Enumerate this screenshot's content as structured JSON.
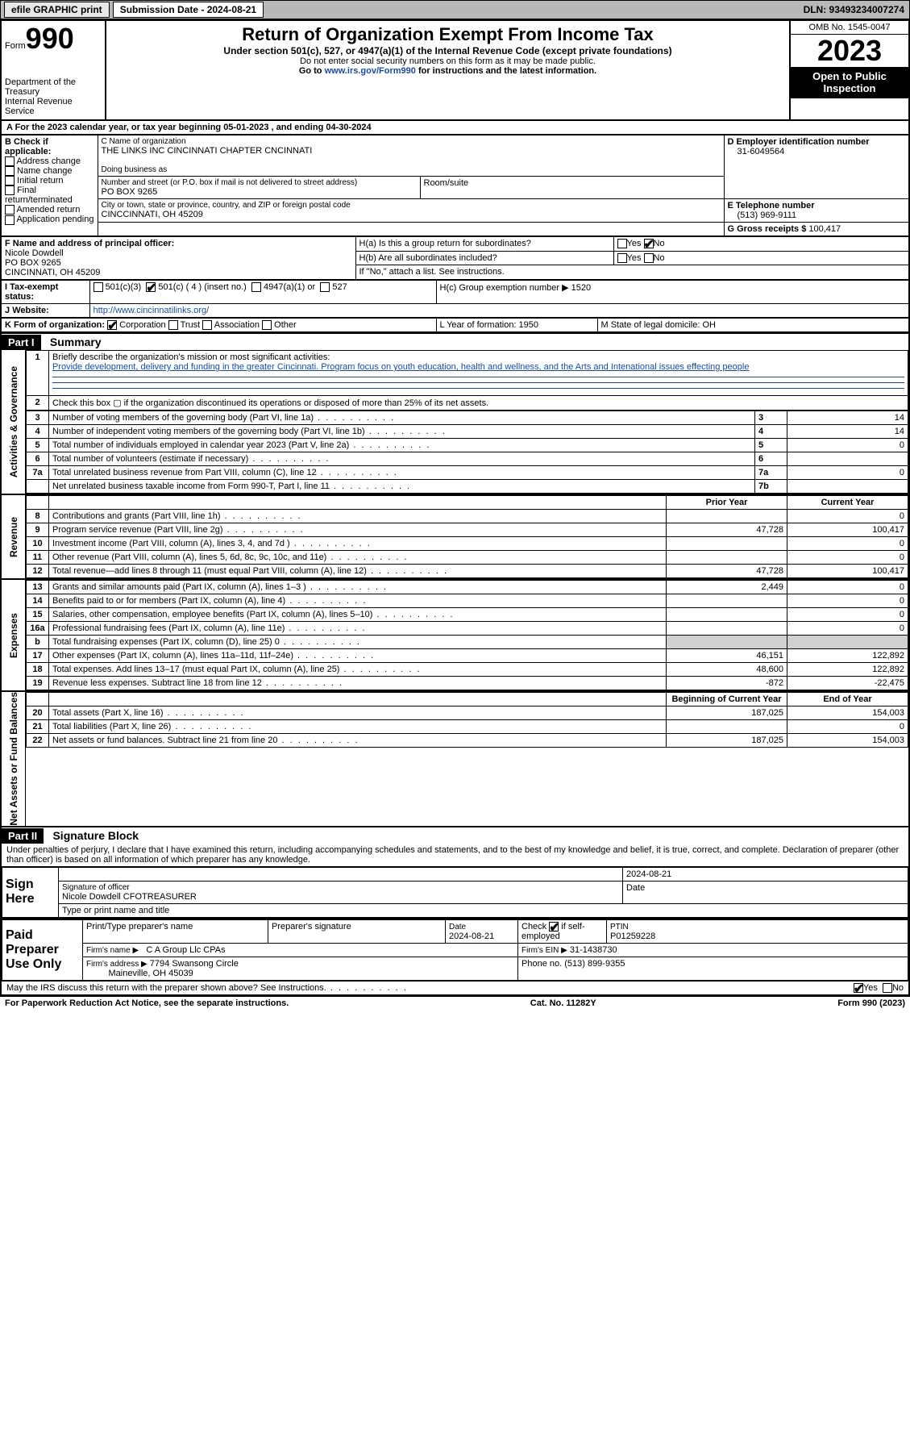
{
  "topbar": {
    "efile_btn": "efile GRAPHIC print",
    "sub_label": "Submission Date - 2024-08-21",
    "dln": "DLN: 93493234007274"
  },
  "header": {
    "form_word": "Form",
    "form_no": "990",
    "dept": "Department of the Treasury",
    "irs": "Internal Revenue Service",
    "title": "Return of Organization Exempt From Income Tax",
    "sub1": "Under section 501(c), 527, or 4947(a)(1) of the Internal Revenue Code (except private foundations)",
    "sub2": "Do not enter social security numbers on this form as it may be made public.",
    "sub3": "Go to www.irs.gov/Form990 for instructions and the latest information.",
    "omb": "OMB No. 1545-0047",
    "year": "2023",
    "open": "Open to Public Inspection"
  },
  "lineA": "A For the 2023 calendar year, or tax year beginning 05-01-2023    , and ending 04-30-2024",
  "boxB": {
    "title": "B Check if applicable:",
    "items": [
      "Address change",
      "Name change",
      "Initial return",
      "Final return/terminated",
      "Amended return",
      "Application pending"
    ]
  },
  "boxC": {
    "label": "C Name of organization",
    "name": "THE LINKS INC CINCINNATI CHAPTER CNCINNATI",
    "dba": "Doing business as",
    "addr_label": "Number and street (or P.O. box if mail is not delivered to street address)",
    "addr": "PO BOX 9265",
    "room": "Room/suite",
    "city_label": "City or town, state or province, country, and ZIP or foreign postal code",
    "city": "CINCCINNATI, OH  45209"
  },
  "boxD": {
    "label": "D Employer identification number",
    "val": "31-6049564"
  },
  "boxE": {
    "label": "E Telephone number",
    "val": "(513) 969-9111"
  },
  "boxG": {
    "label": "G Gross receipts $",
    "val": "100,417"
  },
  "boxF": {
    "label": "F  Name and address of principal officer:",
    "name": "Nicole Dowdell",
    "addr1": "PO BOX 9265",
    "addr2": "CINCINNATI, OH  45209"
  },
  "boxH": {
    "a": "H(a)  Is this a group return for subordinates?",
    "b": "H(b)  Are all subordinates included?",
    "bnote": "If \"No,\" attach a list. See instructions.",
    "c": "H(c)  Group exemption number ▶   1520",
    "yes": "Yes",
    "no": "No"
  },
  "boxI": {
    "label": "Tax-exempt status:",
    "c3": "501(c)(3)",
    "c": "501(c) ( 4 ) (insert no.)",
    "a1": "4947(a)(1) or",
    "527": "527"
  },
  "boxJ": {
    "label": "Website: ",
    "val": "http://www.cincinnatilinks.org/"
  },
  "boxK": {
    "label": "K Form of organization:",
    "corp": "Corporation",
    "trust": "Trust",
    "assoc": "Association",
    "other": "Other"
  },
  "boxL": {
    "label": "L Year of formation: 1950"
  },
  "boxM": {
    "label": "M State of legal domicile: OH"
  },
  "part1": {
    "bar": "Part I",
    "title": "Summary"
  },
  "summary": {
    "q1": "Briefly describe the organization's mission or most significant activities:",
    "mission": "Provide development, delivery and funding in the greater Cincinnati. Program focus on youth education, health and wellness, and the Arts and Intenational issues effecting people",
    "q2": "Check this box ▢ if the organization discontinued its operations or disposed of more than 25% of its net assets.",
    "lines": [
      {
        "n": "3",
        "t": "Number of voting members of the governing body (Part VI, line 1a)",
        "box": "3",
        "v": "14"
      },
      {
        "n": "4",
        "t": "Number of independent voting members of the governing body (Part VI, line 1b)",
        "box": "4",
        "v": "14"
      },
      {
        "n": "5",
        "t": "Total number of individuals employed in calendar year 2023 (Part V, line 2a)",
        "box": "5",
        "v": "0"
      },
      {
        "n": "6",
        "t": "Total number of volunteers (estimate if necessary)",
        "box": "6",
        "v": ""
      },
      {
        "n": "7a",
        "t": "Total unrelated business revenue from Part VIII, column (C), line 12",
        "box": "7a",
        "v": "0"
      },
      {
        "n": "",
        "t": "Net unrelated business taxable income from Form 990-T, Part I, line 11",
        "box": "7b",
        "v": ""
      }
    ],
    "hdr_prior": "Prior Year",
    "hdr_curr": "Current Year",
    "rev": [
      {
        "n": "8",
        "t": "Contributions and grants (Part VIII, line 1h)",
        "p": "",
        "c": "0"
      },
      {
        "n": "9",
        "t": "Program service revenue (Part VIII, line 2g)",
        "p": "47,728",
        "c": "100,417"
      },
      {
        "n": "10",
        "t": "Investment income (Part VIII, column (A), lines 3, 4, and 7d )",
        "p": "",
        "c": "0"
      },
      {
        "n": "11",
        "t": "Other revenue (Part VIII, column (A), lines 5, 6d, 8c, 9c, 10c, and 11e)",
        "p": "",
        "c": "0"
      },
      {
        "n": "12",
        "t": "Total revenue—add lines 8 through 11 (must equal Part VIII, column (A), line 12)",
        "p": "47,728",
        "c": "100,417"
      }
    ],
    "exp": [
      {
        "n": "13",
        "t": "Grants and similar amounts paid (Part IX, column (A), lines 1–3 )",
        "p": "2,449",
        "c": "0"
      },
      {
        "n": "14",
        "t": "Benefits paid to or for members (Part IX, column (A), line 4)",
        "p": "",
        "c": "0"
      },
      {
        "n": "15",
        "t": "Salaries, other compensation, employee benefits (Part IX, column (A), lines 5–10)",
        "p": "",
        "c": "0"
      },
      {
        "n": "16a",
        "t": "Professional fundraising fees (Part IX, column (A), line 11e)",
        "p": "",
        "c": "0"
      },
      {
        "n": "b",
        "t": "Total fundraising expenses (Part IX, column (D), line 25) 0",
        "p": "GREY",
        "c": "GREY"
      },
      {
        "n": "17",
        "t": "Other expenses (Part IX, column (A), lines 11a–11d, 11f–24e)",
        "p": "46,151",
        "c": "122,892"
      },
      {
        "n": "18",
        "t": "Total expenses. Add lines 13–17 (must equal Part IX, column (A), line 25)",
        "p": "48,600",
        "c": "122,892"
      },
      {
        "n": "19",
        "t": "Revenue less expenses. Subtract line 18 from line 12",
        "p": "-872",
        "c": "-22,475"
      }
    ],
    "hdr_beg": "Beginning of Current Year",
    "hdr_end": "End of Year",
    "net": [
      {
        "n": "20",
        "t": "Total assets (Part X, line 16)",
        "p": "187,025",
        "c": "154,003"
      },
      {
        "n": "21",
        "t": "Total liabilities (Part X, line 26)",
        "p": "",
        "c": "0"
      },
      {
        "n": "22",
        "t": "Net assets or fund balances. Subtract line 21 from line 20",
        "p": "187,025",
        "c": "154,003"
      }
    ],
    "tab_ag": "Activities & Governance",
    "tab_rev": "Revenue",
    "tab_exp": "Expenses",
    "tab_net": "Net Assets or Fund Balances"
  },
  "part2": {
    "bar": "Part II",
    "title": "Signature Block"
  },
  "decl": "Under penalties of perjury, I declare that I have examined this return, including accompanying schedules and statements, and to the best of my knowledge and belief, it is true, correct, and complete. Declaration of preparer (other than officer) is based on all information of which preparer has any knowledge.",
  "sign": {
    "here": "Sign Here",
    "sigoff": "Signature of officer",
    "name": "Nicole Dowdell CFOTREASURER",
    "type": "Type or print name and title",
    "date": "2024-08-21",
    "datelbl": "Date"
  },
  "prep": {
    "title": "Paid Preparer Use Only",
    "p1": "Print/Type preparer's name",
    "p2": "Preparer's signature",
    "p3": "Date",
    "date": "2024-08-21",
    "p4": "Check ☑ if self-employed",
    "p5": "PTIN",
    "ptin": "P01259228",
    "firm": "Firm's name ▶",
    "firmval": "C A Group Llc CPAs",
    "ein": "Firm's EIN ▶",
    "einval": "31-1438730",
    "addr": "Firm's address ▶",
    "addrval": "7794 Swansong Circle",
    "city": "Maineville, OH  45039",
    "phone": "Phone no. (513) 899-9355"
  },
  "may": "May the IRS discuss this return with the preparer shown above? See Instructions.",
  "foot": {
    "l": "For Paperwork Reduction Act Notice, see the separate instructions.",
    "c": "Cat. No. 11282Y",
    "r": "Form 990 (2023)"
  }
}
